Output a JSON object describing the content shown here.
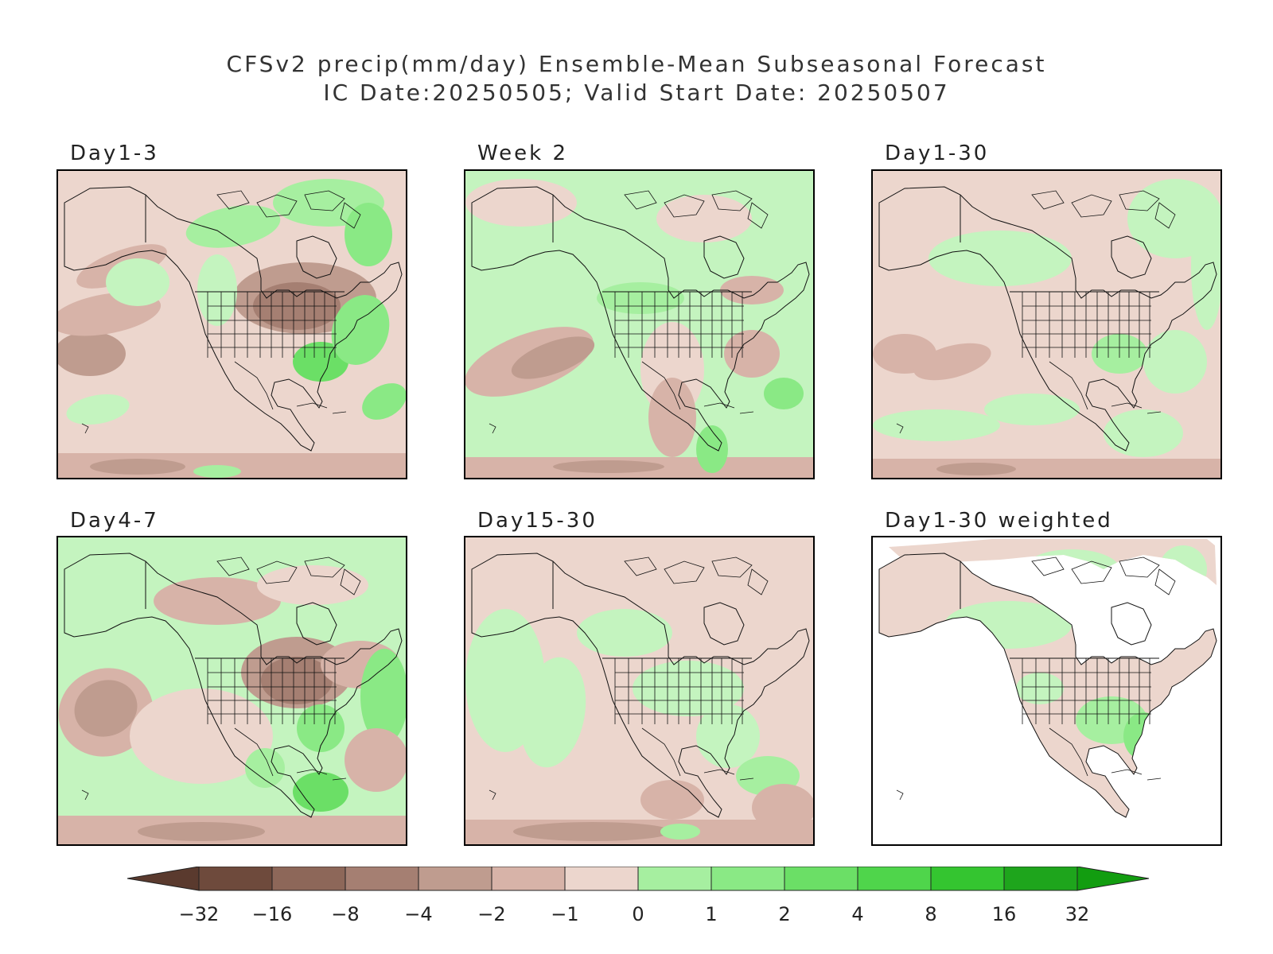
{
  "title_line1": "CFSv2 precip(mm/day) Ensemble-Mean Subseasonal Forecast",
  "title_line2": "IC Date:20250505; Valid Start Date: 20250507",
  "panels": [
    {
      "label": "Day1-3",
      "theme": "dry_north_wet_southeast"
    },
    {
      "label": "Week 2",
      "theme": "mixed_green"
    },
    {
      "label": "Day1-30",
      "theme": "mostly_near_normal"
    },
    {
      "label": "Day4-7",
      "theme": "dry_central_pacific_low"
    },
    {
      "label": "Day15-30",
      "theme": "near_normal_wet_west"
    },
    {
      "label": "Day1-30 weighted",
      "theme": "land_only"
    }
  ],
  "colorbar": {
    "labels": [
      "-32",
      "-16",
      "-8",
      "-4",
      "-2",
      "-1",
      "0",
      "1",
      "2",
      "4",
      "8",
      "16",
      "32"
    ],
    "colors": [
      "#6e4a3c",
      "#8d6759",
      "#a57f72",
      "#bf9c8f",
      "#d7b3a8",
      "#ecd6cd",
      "#c4f4bf",
      "#a6efa0",
      "#8ae985",
      "#6bdf66",
      "#4fd54b",
      "#34c530",
      "#1ea51c"
    ]
  },
  "colors": {
    "land_normal": "#ecd6cd",
    "ocean_missing": "#ffffff"
  }
}
